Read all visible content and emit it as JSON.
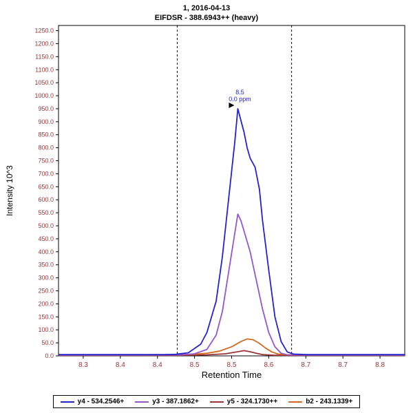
{
  "titles": {
    "line1": "1, 2016-04-13",
    "line2": "EIFDSR - 388.6943++ (heavy)"
  },
  "chart_data": {
    "type": "line",
    "title": "1, 2016-04-13",
    "subtitle": "EIFDSR - 388.6943++ (heavy)",
    "xlabel": "Retention Time",
    "ylabel": "Intensity 10^3",
    "xlim": [
      8.26,
      8.82
    ],
    "ylim": [
      0,
      1270
    ],
    "x_tick_values": [
      8.3,
      8.36,
      8.42,
      8.48,
      8.54,
      8.6,
      8.66,
      8.72,
      8.78
    ],
    "x_tick_labels": [
      "8.3",
      "8.4",
      "8.4",
      "8.5",
      "8.5",
      "8.6",
      "8.7",
      "8.7",
      "8.8"
    ],
    "y_ticks": [
      0,
      50,
      100,
      150,
      200,
      250,
      300,
      350,
      400,
      450,
      500,
      550,
      600,
      650,
      700,
      750,
      800,
      850,
      900,
      950,
      1000,
      1050,
      1100,
      1150,
      1200,
      1250
    ],
    "axis_label_color": "#993333",
    "axis_title_color": "#000000",
    "integration_boundaries": [
      8.452,
      8.637
    ],
    "boundary_color": "#000000",
    "peak_annotation": {
      "rt": "8.5",
      "ppm": "0.0 ppm",
      "x": 8.55,
      "y": 950,
      "color": "#2222cc",
      "arrow_color": "#000000"
    },
    "draw_order": [
      2,
      3,
      1,
      0
    ],
    "series": [
      {
        "name": "y4 - 534.2546+",
        "color": "#2222cc",
        "points": [
          [
            8.26,
            5
          ],
          [
            8.32,
            5
          ],
          [
            8.38,
            5
          ],
          [
            8.43,
            5
          ],
          [
            8.45,
            6
          ],
          [
            8.47,
            12
          ],
          [
            8.49,
            45
          ],
          [
            8.5,
            90
          ],
          [
            8.515,
            210
          ],
          [
            8.525,
            380
          ],
          [
            8.535,
            600
          ],
          [
            8.545,
            820
          ],
          [
            8.55,
            950
          ],
          [
            8.555,
            905
          ],
          [
            8.56,
            860
          ],
          [
            8.565,
            800
          ],
          [
            8.57,
            760
          ],
          [
            8.578,
            725
          ],
          [
            8.585,
            640
          ],
          [
            8.59,
            520
          ],
          [
            8.6,
            330
          ],
          [
            8.61,
            150
          ],
          [
            8.62,
            55
          ],
          [
            8.63,
            15
          ],
          [
            8.64,
            7
          ],
          [
            8.66,
            5
          ],
          [
            8.7,
            5
          ],
          [
            8.76,
            5
          ],
          [
            8.82,
            5
          ]
        ]
      },
      {
        "name": "y3 - 387.1862+",
        "color": "#9654c8",
        "points": [
          [
            8.26,
            3
          ],
          [
            8.4,
            3
          ],
          [
            8.46,
            4
          ],
          [
            8.48,
            8
          ],
          [
            8.5,
            25
          ],
          [
            8.515,
            80
          ],
          [
            8.525,
            170
          ],
          [
            8.535,
            320
          ],
          [
            8.545,
            470
          ],
          [
            8.55,
            545
          ],
          [
            8.555,
            520
          ],
          [
            8.56,
            480
          ],
          [
            8.57,
            400
          ],
          [
            8.58,
            290
          ],
          [
            8.59,
            180
          ],
          [
            8.6,
            90
          ],
          [
            8.61,
            35
          ],
          [
            8.62,
            10
          ],
          [
            8.63,
            4
          ],
          [
            8.66,
            3
          ],
          [
            8.75,
            3
          ],
          [
            8.82,
            3
          ]
        ]
      },
      {
        "name": "y5 - 324.1730++",
        "color": "#993333",
        "points": [
          [
            8.26,
            2
          ],
          [
            8.45,
            2
          ],
          [
            8.5,
            4
          ],
          [
            8.53,
            8
          ],
          [
            8.55,
            16
          ],
          [
            8.56,
            20
          ],
          [
            8.57,
            16
          ],
          [
            8.58,
            10
          ],
          [
            8.59,
            5
          ],
          [
            8.61,
            2
          ],
          [
            8.7,
            2
          ],
          [
            8.82,
            2
          ]
        ]
      },
      {
        "name": "b2 - 243.1339+",
        "color": "#d2691e",
        "points": [
          [
            8.26,
            4
          ],
          [
            8.44,
            4
          ],
          [
            8.48,
            6
          ],
          [
            8.5,
            10
          ],
          [
            8.52,
            18
          ],
          [
            8.54,
            35
          ],
          [
            8.555,
            55
          ],
          [
            8.565,
            65
          ],
          [
            8.575,
            62
          ],
          [
            8.585,
            48
          ],
          [
            8.595,
            30
          ],
          [
            8.605,
            15
          ],
          [
            8.615,
            7
          ],
          [
            8.63,
            4
          ],
          [
            8.7,
            4
          ],
          [
            8.82,
            4
          ]
        ]
      }
    ]
  }
}
